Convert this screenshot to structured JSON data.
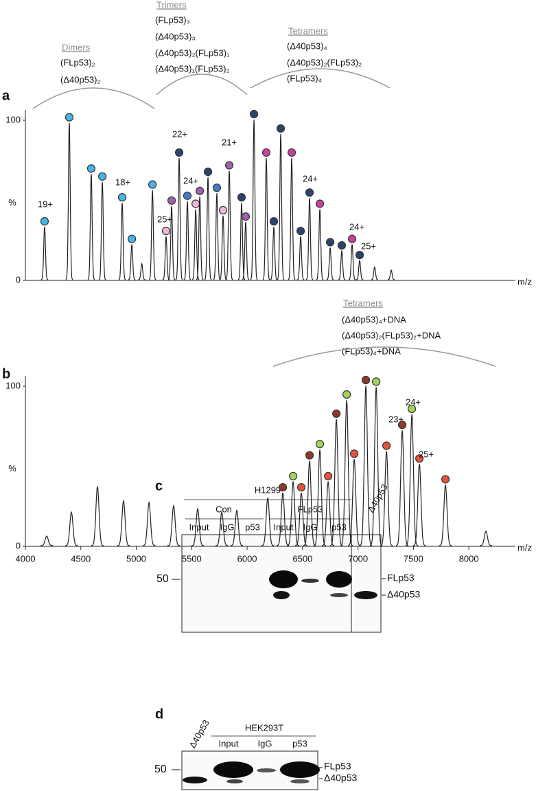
{
  "panel_a": {
    "label": "a",
    "type": "line",
    "ylabel": "%",
    "xlabel": "m/z",
    "xlim": [
      4000,
      8420
    ],
    "ylim": [
      0,
      100
    ],
    "yticks": [
      0,
      100
    ],
    "groups": [
      {
        "title": "Dimers",
        "species": [
          {
            "text": "(FLp53)₂",
            "color": "#2f9fe0"
          },
          {
            "text": "(Δ40p53)₂",
            "color": "#2f9fe0"
          }
        ]
      },
      {
        "title": "Trimers",
        "species": [
          {
            "text": "(FLp53)₃",
            "color": "#3d66b8"
          },
          {
            "text": "(Δ40p53)₃",
            "color": "#2c4270"
          },
          {
            "text": "(Δ40p53)₂(FLp53)₁",
            "color": "#9a4fa8"
          },
          {
            "text": "(Δ40p53)₁(FLp53)₂",
            "color": "#f0a0d2"
          }
        ]
      },
      {
        "title": "Tetramers",
        "species": [
          {
            "text": "(Δ40p53)₄",
            "color": "#2c4270"
          },
          {
            "text": "(Δ40p53)₂(FLp53)₂",
            "color": "#e040b0"
          },
          {
            "text": "(FLp53)₄",
            "color": "#2c4270"
          }
        ]
      }
    ],
    "peaks": [
      {
        "mz": 4173,
        "height": 33,
        "marker": "#45b4ea"
      },
      {
        "mz": 4396,
        "height": 98,
        "marker": "#45b4ea"
      },
      {
        "mz": 4594,
        "height": 66,
        "marker": "#45b4ea"
      },
      {
        "mz": 4694,
        "height": 61,
        "marker": "#45b4ea"
      },
      {
        "mz": 4873,
        "height": 48,
        "marker": "#45b4ea"
      },
      {
        "mz": 4960,
        "height": 22,
        "marker": "#45b4ea"
      },
      {
        "mz": 5050,
        "height": 10
      },
      {
        "mz": 5146,
        "height": 56,
        "marker": "#45b4ea"
      },
      {
        "mz": 5269,
        "height": 27,
        "marker": "#f2b4dc"
      },
      {
        "mz": 5319,
        "height": 46,
        "marker": "#a25fb0"
      },
      {
        "mz": 5387,
        "height": 76,
        "marker": "#2c4270"
      },
      {
        "mz": 5461,
        "height": 49,
        "marker": "#4a78c8"
      },
      {
        "mz": 5536,
        "height": 44,
        "marker": "#f2b4dc"
      },
      {
        "mz": 5573,
        "height": 52,
        "marker": "#a25fb0"
      },
      {
        "mz": 5647,
        "height": 64,
        "marker": "#2c4270"
      },
      {
        "mz": 5727,
        "height": 54,
        "marker": "#4a78c8"
      },
      {
        "mz": 5783,
        "height": 40,
        "marker": "#f2b4dc"
      },
      {
        "mz": 5839,
        "height": 68,
        "marker": "#a25fb0"
      },
      {
        "mz": 5950,
        "height": 48,
        "marker": "#2c4270"
      },
      {
        "mz": 5987,
        "height": 36,
        "marker": "#a25fb0"
      },
      {
        "mz": 6062,
        "height": 100,
        "marker": "#2c4270"
      },
      {
        "mz": 6173,
        "height": 76,
        "marker": "#c8419f"
      },
      {
        "mz": 6241,
        "height": 33,
        "marker": "#2c4270"
      },
      {
        "mz": 6303,
        "height": 91,
        "marker": "#2c4270"
      },
      {
        "mz": 6402,
        "height": 76,
        "marker": "#c8419f"
      },
      {
        "mz": 6483,
        "height": 27,
        "marker": "#2c4270"
      },
      {
        "mz": 6563,
        "height": 51,
        "marker": "#2c4270"
      },
      {
        "mz": 6656,
        "height": 44,
        "marker": "#c8419f"
      },
      {
        "mz": 6749,
        "height": 20,
        "marker": "#2c4270"
      },
      {
        "mz": 6854,
        "height": 18,
        "marker": "#2c4270"
      },
      {
        "mz": 6947,
        "height": 22,
        "marker": "#c8419f"
      },
      {
        "mz": 7015,
        "height": 12,
        "marker": "#2c4270"
      },
      {
        "mz": 7150,
        "height": 8
      },
      {
        "mz": 7300,
        "height": 6
      }
    ],
    "charge_labels": [
      "19+",
      "18+",
      "25+",
      "24+",
      "22+",
      "21+",
      "24+",
      "24+",
      "25+"
    ]
  },
  "panel_b": {
    "label": "b",
    "type": "line",
    "ylabel": "%",
    "xlabel": "m/z",
    "xlim": [
      4000,
      8420
    ],
    "ylim": [
      0,
      100
    ],
    "yticks": [
      0,
      100
    ],
    "xticks": [
      4000,
      4500,
      5000,
      5500,
      6000,
      6500,
      7000,
      7500,
      8000
    ],
    "groups": [
      {
        "title": "Tetramers",
        "species": [
          {
            "text": "(Δ40p53)₄+DNA",
            "color": "#e6402a"
          },
          {
            "text": "(Δ40p53)₂(FLp53)₂+DNA",
            "color": "#8ccc40"
          },
          {
            "text": "(FLp53)₄+DNA",
            "color": "#e6402a"
          }
        ]
      }
    ],
    "peaks": [
      {
        "mz": 4192,
        "height": 6
      },
      {
        "mz": 4415,
        "height": 21
      },
      {
        "mz": 4650,
        "height": 37
      },
      {
        "mz": 4885,
        "height": 28
      },
      {
        "mz": 5115,
        "height": 27
      },
      {
        "mz": 5337,
        "height": 25
      },
      {
        "mz": 5554,
        "height": 23
      },
      {
        "mz": 5771,
        "height": 21
      },
      {
        "mz": 5907,
        "height": 22
      },
      {
        "mz": 6186,
        "height": 30
      },
      {
        "mz": 6322,
        "height": 33,
        "marker": "#8c3a28"
      },
      {
        "mz": 6415,
        "height": 40,
        "marker": "#a5d35a"
      },
      {
        "mz": 6489,
        "height": 33,
        "marker": "#e6533d"
      },
      {
        "mz": 6563,
        "height": 53,
        "marker": "#8c3a28"
      },
      {
        "mz": 6656,
        "height": 60,
        "marker": "#a5d35a"
      },
      {
        "mz": 6731,
        "height": 40,
        "marker": "#e6533d"
      },
      {
        "mz": 6805,
        "height": 79,
        "marker": "#8c3a28"
      },
      {
        "mz": 6898,
        "height": 91,
        "marker": "#a5d35a"
      },
      {
        "mz": 6966,
        "height": 54,
        "marker": "#e6533d"
      },
      {
        "mz": 7071,
        "height": 100,
        "marker": "#8c3a28"
      },
      {
        "mz": 7164,
        "height": 99,
        "marker": "#a5d35a"
      },
      {
        "mz": 7257,
        "height": 59,
        "marker": "#e6533d"
      },
      {
        "mz": 7399,
        "height": 72,
        "marker": "#8c3a28"
      },
      {
        "mz": 7486,
        "height": 82,
        "marker": "#a5d35a"
      },
      {
        "mz": 7554,
        "height": 51,
        "marker": "#e6533d"
      },
      {
        "mz": 7789,
        "height": 38,
        "marker": "#e6533d"
      },
      {
        "mz": 8154,
        "height": 9
      }
    ],
    "charge_labels": [
      "23+",
      "24+",
      "25+"
    ]
  },
  "panel_c": {
    "label": "c",
    "cell_line": "H1299",
    "conditions": [
      "Con",
      "FLp53"
    ],
    "lanes": [
      "Input",
      "IgG",
      "p53",
      "Input",
      "IgG",
      "p53"
    ],
    "extra_lane": "Δ40p53",
    "size_marker": "50",
    "bands": [
      "FLp53",
      "Δ40p53"
    ]
  },
  "panel_d": {
    "label": "d",
    "cell_line": "HEK293T",
    "extra_lane": "Δ40p53",
    "lanes": [
      "Input",
      "IgG",
      "p53"
    ],
    "size_marker": "50",
    "bands": [
      "FLp53",
      "Δ40p53"
    ]
  }
}
